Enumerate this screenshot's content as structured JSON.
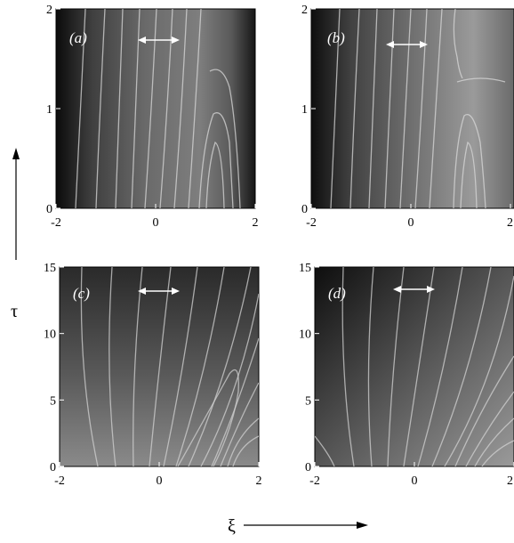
{
  "figure": {
    "y_axis_label": "τ",
    "x_axis_label": "ξ"
  },
  "chart_data": [
    {
      "type": "heatmap",
      "panel_label": "(a)",
      "xlim": [
        -2,
        2
      ],
      "ylim": [
        0,
        2
      ],
      "x_ticks": [
        "-2",
        "0",
        "2"
      ],
      "y_ticks": [
        "0",
        "1",
        "2"
      ],
      "colormap": "grayscale",
      "grid": false
    },
    {
      "type": "heatmap",
      "panel_label": "(b)",
      "xlim": [
        -2,
        2
      ],
      "ylim": [
        0,
        2
      ],
      "x_ticks": [
        "-2",
        "0",
        "2"
      ],
      "y_ticks": [
        "0",
        "1",
        "2"
      ],
      "colormap": "grayscale",
      "grid": false
    },
    {
      "type": "heatmap",
      "panel_label": "(c)",
      "xlim": [
        -2,
        2
      ],
      "ylim": [
        0,
        15
      ],
      "x_ticks": [
        "-2",
        "0",
        "2"
      ],
      "y_ticks": [
        "0",
        "5",
        "10",
        "15"
      ],
      "colormap": "grayscale",
      "grid": false
    },
    {
      "type": "heatmap",
      "panel_label": "(d)",
      "xlim": [
        -2,
        2
      ],
      "ylim": [
        0,
        15
      ],
      "x_ticks": [
        "-2",
        "0",
        "2"
      ],
      "y_ticks": [
        "0",
        "5",
        "10",
        "15"
      ],
      "colormap": "grayscale",
      "grid": false
    }
  ]
}
